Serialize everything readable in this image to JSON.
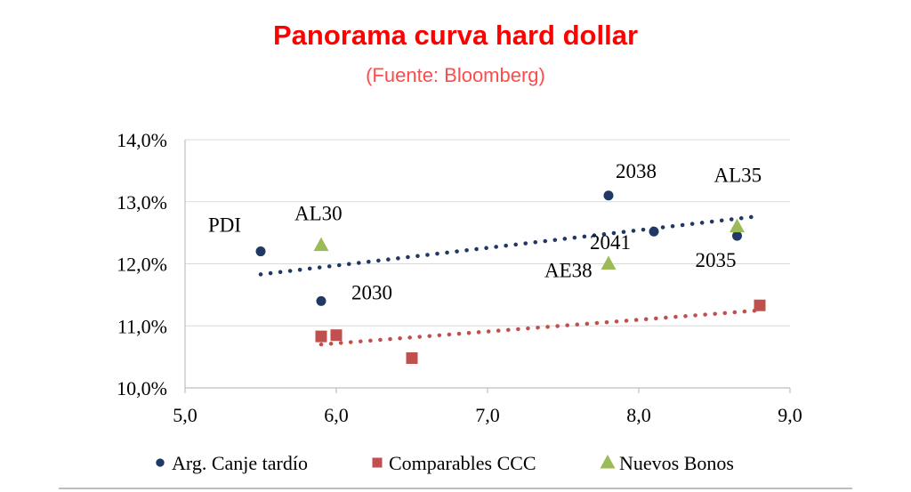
{
  "chart_data": {
    "type": "scatter",
    "title": "Panorama curva hard dollar",
    "subtitle": "(Fuente: Bloomberg)",
    "xlim": [
      5.0,
      9.0
    ],
    "ylim": [
      0.1,
      0.14
    ],
    "x_ticks": [
      5.0,
      6.0,
      7.0,
      8.0,
      9.0
    ],
    "x_tick_labels": [
      "5,0",
      "6,0",
      "7,0",
      "8,0",
      "9,0"
    ],
    "y_ticks": [
      0.1,
      0.11,
      0.12,
      0.13,
      0.14
    ],
    "y_tick_labels": [
      "10,0%",
      "11,0%",
      "12,0%",
      "13,0%",
      "14,0%"
    ],
    "grid": "horizontal",
    "legend_position": "bottom",
    "colors": {
      "title": "#ff0000",
      "subtitle": "#ff4b4b",
      "series_1": "#1f3864",
      "series_2": "#c0504d",
      "series_3": "#9bbb59",
      "grid": "#d9d9d9"
    },
    "series": [
      {
        "name": "Arg. Canje tardío",
        "marker": "circle",
        "points": [
          {
            "x": 5.5,
            "y": 0.122,
            "label": "PDI"
          },
          {
            "x": 5.9,
            "y": 0.114,
            "label": "2030"
          },
          {
            "x": 7.8,
            "y": 0.131,
            "label": "2038"
          },
          {
            "x": 8.1,
            "y": 0.1252,
            "label": "2041"
          },
          {
            "x": 8.65,
            "y": 0.1245,
            "label": "2035"
          }
        ],
        "trendline": {
          "x": [
            5.5,
            8.8
          ],
          "y": [
            0.1183,
            0.1277
          ]
        }
      },
      {
        "name": "Comparables CCC",
        "marker": "square",
        "points": [
          {
            "x": 5.9,
            "y": 0.1083
          },
          {
            "x": 6.0,
            "y": 0.1085
          },
          {
            "x": 6.5,
            "y": 0.1048
          },
          {
            "x": 8.8,
            "y": 0.1133
          }
        ],
        "trendline": {
          "x": [
            5.9,
            8.8
          ],
          "y": [
            0.107,
            0.1125
          ]
        }
      },
      {
        "name": "Nuevos Bonos",
        "marker": "triangle",
        "points": [
          {
            "x": 5.9,
            "y": 0.123,
            "label": "AL30"
          },
          {
            "x": 7.8,
            "y": 0.12,
            "label": "AE38"
          },
          {
            "x": 8.65,
            "y": 0.126,
            "label": "AL35"
          }
        ]
      }
    ]
  }
}
